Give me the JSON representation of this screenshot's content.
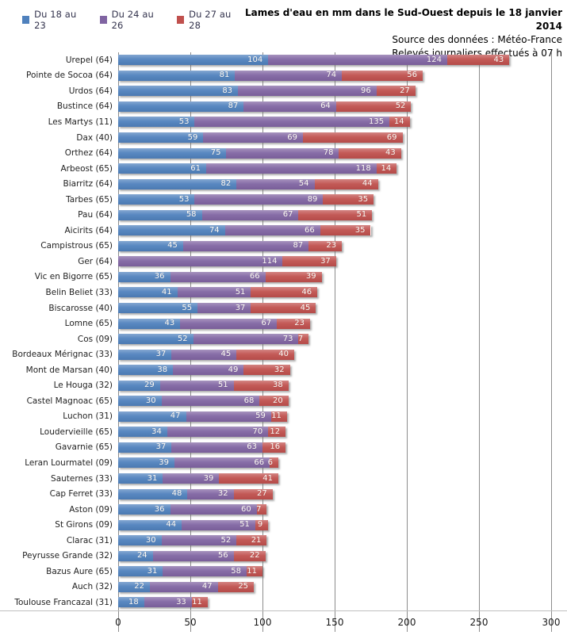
{
  "header": {
    "title": "Lames d'eau en mm dans le Sud-Ouest depuis le 18 janvier 2014",
    "source_line": "Source des données : Météo-France",
    "releves_line": "Relevés journaliers effectués à 07 h"
  },
  "colors": {
    "series_blue": "#4F81BD",
    "series_purple": "#8064A2",
    "series_red": "#C0504D",
    "gridline": "#8C8C8C",
    "value_label": "#FDFBF7"
  },
  "chart_data": {
    "type": "bar",
    "orientation": "horizontal",
    "stacked": true,
    "grid": true,
    "legend_position": "top-left",
    "xlim": [
      0,
      300
    ],
    "xticks": [
      0,
      50,
      100,
      150,
      200,
      250,
      300
    ],
    "xlabel": "",
    "ylabel": "",
    "title": "Lames d'eau en mm dans le Sud-Ouest depuis le 18 janvier 2014",
    "subtitle": "Source des données : Météo-France — Relevés journaliers effectués à 07 h",
    "categories": [
      "Urepel (64)",
      "Pointe de Socoa (64)",
      "Urdos (64)",
      "Bustince (64)",
      "Les Martys (11)",
      "Dax (40)",
      "Orthez (64)",
      "Arbeost (65)",
      "Biarritz (64)",
      "Tarbes (65)",
      "Pau (64)",
      "Aicirits (64)",
      "Campistrous (65)",
      "Ger (64)",
      "Vic en Bigorre (65)",
      "Belin Beliet (33)",
      "Biscarosse (40)",
      "Lomne (65)",
      "Cos (09)",
      "Bordeaux Mérignac (33)",
      "Mont de Marsan (40)",
      "Le Houga (32)",
      "Castel Magnoac (65)",
      "Luchon (31)",
      "Loudervieille (65)",
      "Gavarnie (65)",
      "Leran Lourmatel (09)",
      "Sauternes (33)",
      "Cap Ferret (33)",
      "Aston (09)",
      "St Girons (09)",
      "Clarac (31)",
      "Peyrusse Grande (32)",
      "Bazus Aure (65)",
      "Auch (32)",
      "Toulouse Francazal (31)"
    ],
    "series": [
      {
        "name": "Du 18 au 23",
        "color": "#4F81BD",
        "values": [
          104,
          81,
          83,
          87,
          53,
          59,
          75,
          61,
          82,
          53,
          58,
          74,
          45,
          0,
          36,
          41,
          55,
          43,
          52,
          37,
          38,
          29,
          30,
          47,
          34,
          37,
          39,
          31,
          48,
          36,
          44,
          30,
          24,
          31,
          22,
          18
        ]
      },
      {
        "name": "Du 24 au 26",
        "color": "#8064A2",
        "values": [
          124,
          74,
          96,
          64,
          135,
          69,
          78,
          118,
          54,
          89,
          67,
          66,
          87,
          114,
          66,
          51,
          37,
          67,
          73,
          45,
          49,
          51,
          68,
          59,
          70,
          63,
          66,
          39,
          32,
          60,
          51,
          52,
          56,
          58,
          47,
          33
        ]
      },
      {
        "name": "Du 27 au 28",
        "color": "#C0504D",
        "values": [
          43,
          56,
          27,
          52,
          14,
          69,
          43,
          14,
          44,
          35,
          51,
          35,
          23,
          37,
          39,
          46,
          45,
          23,
          7,
          40,
          32,
          38,
          20,
          11,
          12,
          16,
          6,
          41,
          27,
          7,
          9,
          21,
          22,
          11,
          25,
          11
        ]
      }
    ]
  }
}
